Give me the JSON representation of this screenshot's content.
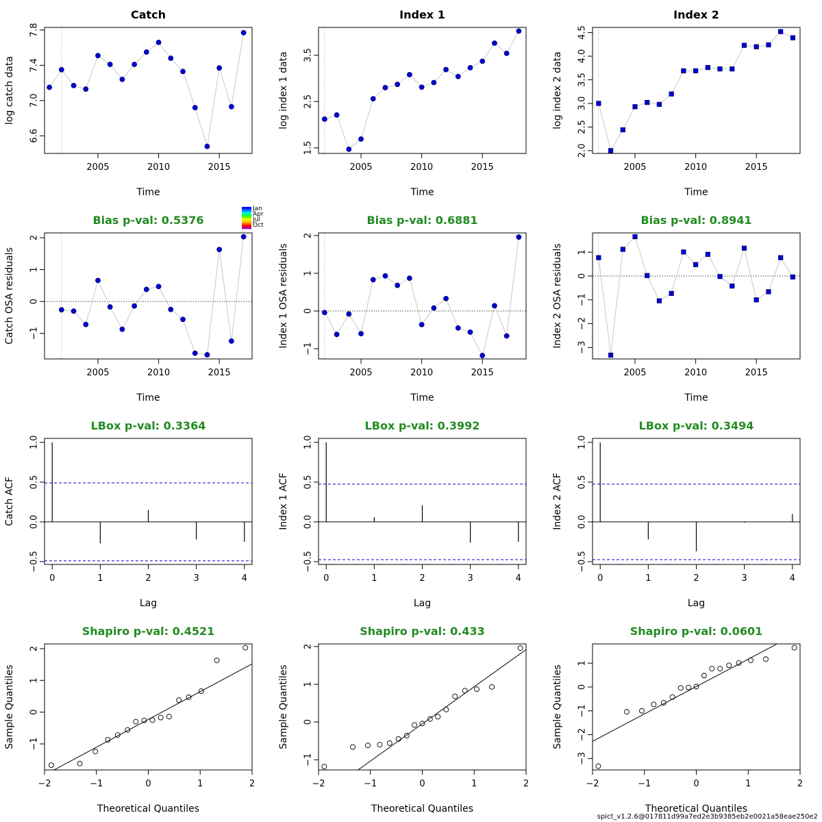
{
  "footer": "spict_v1.2.6@017811d99a7ed2e3b9385eb2e0021a58eae250e2",
  "colors": {
    "point": "#0000cd",
    "line": "#c8c8c8",
    "title_green": "#228b22",
    "acf_band": "#0000cd",
    "qq_line": "#000000"
  },
  "legend": {
    "labels": [
      "Jan",
      "Apr",
      "Jul",
      "Oct"
    ]
  },
  "chart_data": [
    {
      "type": "scatter",
      "title": "Catch",
      "title_color": "black",
      "xlabel": "Time",
      "ylabel": "log catch data",
      "xlim": [
        2000.6,
        2017.7
      ],
      "ylim": [
        6.4,
        7.83
      ],
      "xticks": [
        2005,
        2010,
        2015
      ],
      "yticks": [
        6.6,
        7.0,
        7.4,
        7.8
      ],
      "vline": 2002,
      "marker": "circle",
      "x": [
        2001,
        2002,
        2003,
        2004,
        2005,
        2006,
        2007,
        2008,
        2009,
        2010,
        2011,
        2012,
        2013,
        2014,
        2015,
        2016,
        2017
      ],
      "y": [
        7.15,
        7.35,
        7.17,
        7.13,
        7.51,
        7.41,
        7.24,
        7.41,
        7.55,
        7.66,
        7.48,
        7.33,
        6.92,
        6.48,
        7.37,
        6.93,
        7.77
      ]
    },
    {
      "type": "scatter",
      "title": "Index 1",
      "title_color": "black",
      "xlabel": "Time",
      "ylabel": "log index 1 data",
      "xlim": [
        2001.5,
        2018.6
      ],
      "ylim": [
        1.38,
        4.1
      ],
      "xticks": [
        2005,
        2010,
        2015
      ],
      "yticks": [
        1.5,
        2.5,
        3.5
      ],
      "vline": 2002,
      "marker": "circle",
      "x": [
        2002,
        2003,
        2004,
        2005,
        2006,
        2007,
        2008,
        2009,
        2010,
        2011,
        2012,
        2013,
        2014,
        2015,
        2016,
        2017,
        2018
      ],
      "y": [
        2.12,
        2.21,
        1.47,
        1.69,
        2.56,
        2.8,
        2.87,
        3.08,
        2.81,
        2.91,
        3.19,
        3.04,
        3.23,
        3.37,
        3.76,
        3.54,
        4.02
      ]
    },
    {
      "type": "scatter",
      "title": "Index 2",
      "title_color": "black",
      "xlabel": "Time",
      "ylabel": "log index 2 data",
      "xlim": [
        2001.5,
        2018.6
      ],
      "ylim": [
        1.94,
        4.61
      ],
      "xticks": [
        2005,
        2010,
        2015
      ],
      "yticks": [
        2.0,
        2.5,
        3.0,
        3.5,
        4.0,
        4.5
      ],
      "vline": 2002,
      "marker": "square",
      "x": [
        2002,
        2003,
        2004,
        2005,
        2006,
        2007,
        2008,
        2009,
        2010,
        2011,
        2012,
        2013,
        2014,
        2015,
        2016,
        2017,
        2018
      ],
      "y": [
        3.0,
        2.0,
        2.44,
        2.93,
        3.02,
        2.98,
        3.2,
        3.69,
        3.69,
        3.76,
        3.73,
        3.73,
        4.23,
        4.2,
        4.24,
        4.52,
        4.39
      ]
    },
    {
      "type": "scatter",
      "title": "Bias p-val: 0.5376",
      "title_color": "green",
      "xlabel": "Time",
      "ylabel": "Catch OSA residuals",
      "xlim": [
        2000.6,
        2017.7
      ],
      "ylim": [
        -1.8,
        2.15
      ],
      "xticks": [
        2005,
        2010,
        2015
      ],
      "yticks": [
        -1,
        0,
        1,
        2
      ],
      "vline": 2002,
      "hline": 0,
      "marker": "circle",
      "legend": true,
      "x": [
        2002,
        2003,
        2004,
        2005,
        2006,
        2007,
        2008,
        2009,
        2010,
        2011,
        2012,
        2013,
        2014,
        2015,
        2016,
        2017
      ],
      "y": [
        -0.26,
        -0.3,
        -0.72,
        0.66,
        -0.17,
        -0.87,
        -0.14,
        0.38,
        0.47,
        -0.25,
        -0.56,
        -1.62,
        -1.67,
        1.63,
        -1.24,
        2.03
      ]
    },
    {
      "type": "scatter",
      "title": "Bias p-val: 0.6881",
      "title_color": "green",
      "xlabel": "Time",
      "ylabel": "Index 1 OSA residuals",
      "xlim": [
        2001.5,
        2018.6
      ],
      "ylim": [
        -1.27,
        2.07
      ],
      "xticks": [
        2005,
        2010,
        2015
      ],
      "yticks": [
        -1.0,
        0.0,
        1.0,
        2.0
      ],
      "vline": 2002,
      "hline": 0,
      "marker": "circle",
      "x": [
        2002,
        2003,
        2004,
        2005,
        2006,
        2007,
        2008,
        2009,
        2010,
        2011,
        2012,
        2013,
        2014,
        2015,
        2016,
        2017,
        2018
      ],
      "y": [
        -0.04,
        -0.62,
        -0.08,
        -0.6,
        0.83,
        0.93,
        0.68,
        0.87,
        -0.36,
        0.08,
        0.33,
        -0.45,
        -0.56,
        -1.18,
        0.14,
        -0.66,
        1.96
      ]
    },
    {
      "type": "scatter",
      "title": "Bias p-val: 0.8941",
      "title_color": "green",
      "xlabel": "Time",
      "ylabel": "Index 2 OSA residuals",
      "xlim": [
        2001.5,
        2018.6
      ],
      "ylim": [
        -3.48,
        1.81
      ],
      "xticks": [
        2005,
        2010,
        2015
      ],
      "yticks": [
        -3,
        -2,
        -1,
        0,
        1
      ],
      "vline": 2002,
      "hline": 0,
      "marker": "square",
      "x": [
        2002,
        2003,
        2004,
        2005,
        2006,
        2007,
        2008,
        2009,
        2010,
        2011,
        2012,
        2013,
        2014,
        2015,
        2016,
        2017,
        2018
      ],
      "y": [
        0.77,
        -3.32,
        1.12,
        1.65,
        0.02,
        -1.04,
        -0.73,
        1.01,
        0.48,
        0.91,
        -0.02,
        -0.42,
        1.17,
        -1.0,
        -0.66,
        0.77,
        -0.04
      ]
    },
    {
      "type": "bar",
      "subtype": "acf",
      "title": "LBox p-val: 0.3364",
      "title_color": "green",
      "xlabel": "Lag",
      "ylabel": "Catch ACF",
      "xlim": [
        -0.16,
        4.16
      ],
      "ylim": [
        -0.535,
        1.05
      ],
      "xticks": [
        0,
        1,
        2,
        3,
        4
      ],
      "yticks": [
        -0.5,
        0.0,
        0.5,
        1.0
      ],
      "band": 0.49,
      "x": [
        0,
        1,
        2,
        3,
        4
      ],
      "y": [
        1.0,
        -0.27,
        0.15,
        -0.22,
        -0.25
      ]
    },
    {
      "type": "bar",
      "subtype": "acf",
      "title": "LBox p-val: 0.3992",
      "title_color": "green",
      "xlabel": "Lag",
      "ylabel": "Index 1 ACF",
      "xlim": [
        -0.16,
        4.16
      ],
      "ylim": [
        -0.535,
        1.05
      ],
      "xticks": [
        0,
        1,
        2,
        3,
        4
      ],
      "yticks": [
        -0.5,
        0.0,
        0.5,
        1.0
      ],
      "band": 0.475,
      "x": [
        0,
        1,
        2,
        3,
        4
      ],
      "y": [
        1.0,
        0.06,
        0.21,
        -0.26,
        -0.25
      ]
    },
    {
      "type": "bar",
      "subtype": "acf",
      "title": "LBox p-val: 0.3494",
      "title_color": "green",
      "xlabel": "Lag",
      "ylabel": "Index 2 ACF",
      "xlim": [
        -0.16,
        4.16
      ],
      "ylim": [
        -0.535,
        1.05
      ],
      "xticks": [
        0,
        1,
        2,
        3,
        4
      ],
      "yticks": [
        -0.5,
        0.0,
        0.5,
        1.0
      ],
      "band": 0.475,
      "x": [
        0,
        1,
        2,
        3,
        4
      ],
      "y": [
        1.0,
        -0.22,
        -0.37,
        -0.01,
        0.1
      ]
    },
    {
      "type": "scatter",
      "subtype": "qq",
      "title": "Shapiro p-val: 0.4521",
      "title_color": "green",
      "xlabel": "Theoretical Quantiles",
      "ylabel": "Sample Quantiles",
      "xlim": [
        -2.0,
        2.0
      ],
      "ylim": [
        -1.82,
        2.15
      ],
      "xticks": [
        -2,
        -1,
        0,
        1,
        2
      ],
      "yticks": [
        -1,
        0,
        1,
        2
      ],
      "qq_line": [
        [
          -2.0,
          -1.98
        ],
        [
          2.0,
          1.52
        ]
      ],
      "x": [
        -1.87,
        -1.32,
        -1.02,
        -0.78,
        -0.59,
        -0.4,
        -0.24,
        -0.08,
        0.08,
        0.24,
        0.4,
        0.59,
        0.78,
        1.02,
        1.32,
        1.87
      ],
      "y": [
        -1.67,
        -1.62,
        -1.24,
        -0.87,
        -0.72,
        -0.56,
        -0.3,
        -0.26,
        -0.25,
        -0.17,
        -0.14,
        0.38,
        0.47,
        0.66,
        1.63,
        2.03
      ]
    },
    {
      "type": "scatter",
      "subtype": "qq",
      "title": "Shapiro p-val: 0.433",
      "title_color": "green",
      "xlabel": "Theoretical Quantiles",
      "ylabel": "Sample Quantiles",
      "xlim": [
        -2.0,
        2.0
      ],
      "ylim": [
        -1.27,
        2.07
      ],
      "xticks": [
        -2,
        -1,
        0,
        1,
        2
      ],
      "yticks": [
        -1.0,
        0.0,
        1.0,
        2.0
      ],
      "qq_line": [
        [
          -2.0,
          -2.02
        ],
        [
          2.0,
          1.92
        ]
      ],
      "x": [
        -1.89,
        -1.34,
        -1.05,
        -0.82,
        -0.63,
        -0.46,
        -0.3,
        -0.15,
        0.0,
        0.15,
        0.3,
        0.46,
        0.63,
        0.82,
        1.05,
        1.34,
        1.89
      ],
      "y": [
        -1.18,
        -0.66,
        -0.62,
        -0.6,
        -0.56,
        -0.45,
        -0.36,
        -0.08,
        -0.04,
        0.08,
        0.14,
        0.33,
        0.68,
        0.83,
        0.87,
        0.93,
        1.96
      ]
    },
    {
      "type": "scatter",
      "subtype": "qq",
      "title": "Shapiro p-val: 0.0601",
      "title_color": "green",
      "xlabel": "Theoretical Quantiles",
      "ylabel": "Sample Quantiles",
      "xlim": [
        -2.0,
        2.0
      ],
      "ylim": [
        -3.48,
        1.81
      ],
      "xticks": [
        -2,
        -1,
        0,
        1,
        2
      ],
      "yticks": [
        -3,
        -2,
        -1,
        0,
        1
      ],
      "qq_line": [
        [
          -2.0,
          -2.28
        ],
        [
          2.0,
          2.32
        ]
      ],
      "x": [
        -1.89,
        -1.34,
        -1.05,
        -0.82,
        -0.63,
        -0.46,
        -0.3,
        -0.15,
        0.0,
        0.15,
        0.3,
        0.46,
        0.63,
        0.82,
        1.05,
        1.34,
        1.89
      ],
      "y": [
        -3.32,
        -1.04,
        -1.0,
        -0.73,
        -0.66,
        -0.42,
        -0.04,
        -0.02,
        0.02,
        0.48,
        0.77,
        0.77,
        0.91,
        1.01,
        1.12,
        1.17,
        1.65
      ]
    }
  ]
}
